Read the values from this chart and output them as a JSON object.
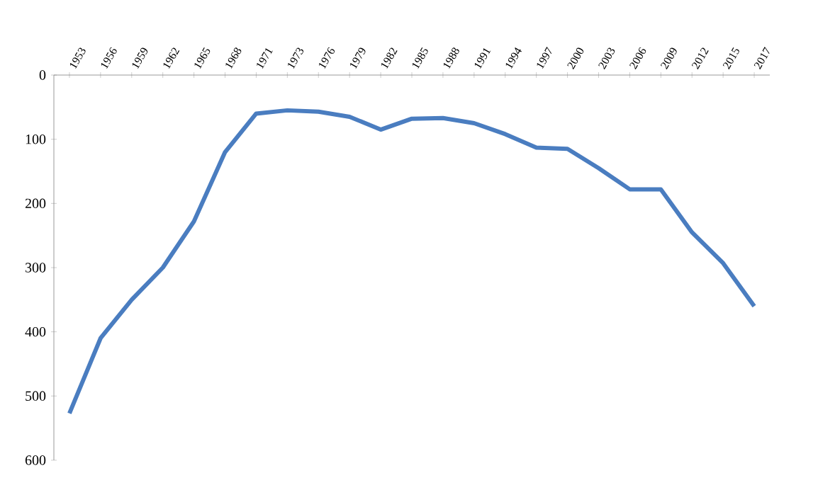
{
  "chart_data": {
    "type": "line",
    "categories": [
      "1953",
      "1956",
      "1959",
      "1962",
      "1965",
      "1968",
      "1971",
      "1973",
      "1976",
      "1979",
      "1982",
      "1985",
      "1988",
      "1991",
      "1994",
      "1997",
      "2000",
      "2003",
      "2006",
      "2009",
      "2012",
      "2015",
      "2017"
    ],
    "series": [
      {
        "color": "#4a7dc0",
        "values": [
          527,
          410,
          350,
          300,
          228,
          120,
          60,
          55,
          57,
          65,
          85,
          68,
          67,
          75,
          92,
          113,
          115,
          145,
          178,
          178,
          245,
          293,
          360
        ]
      }
    ],
    "ylim": [
      600,
      0
    ],
    "yticks": [
      0,
      100,
      200,
      300,
      400,
      500,
      600
    ],
    "marker": "none",
    "line_style": "solid"
  }
}
